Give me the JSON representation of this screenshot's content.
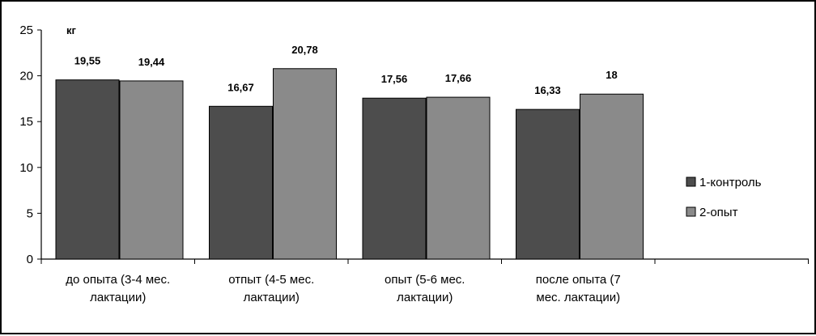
{
  "chart_data": {
    "type": "bar",
    "unit_label": "кг",
    "categories": [
      [
        "до опыта (3-4 мес.",
        "лактации)"
      ],
      [
        "отпыт (4-5 мес.",
        "лактации)"
      ],
      [
        "опыт (5-6 мес.",
        "лактации)"
      ],
      [
        "после опыта (7",
        "мес. лактации)"
      ]
    ],
    "series": [
      {
        "name": "1-контроль",
        "color": "#4d4d4d",
        "values": [
          19.55,
          16.67,
          17.56,
          16.33
        ],
        "labels": [
          "19,55",
          "16,67",
          "17,56",
          "16,33"
        ]
      },
      {
        "name": "2-опыт",
        "color": "#8a8a8a",
        "values": [
          19.44,
          20.78,
          17.66,
          18
        ],
        "labels": [
          "19,44",
          "20,78",
          "17,66",
          "18"
        ]
      }
    ],
    "yticks": [
      "0",
      "5",
      "10",
      "15",
      "20",
      "25"
    ],
    "ylim": [
      0,
      25
    ],
    "grid": false,
    "legend_position": "right"
  }
}
